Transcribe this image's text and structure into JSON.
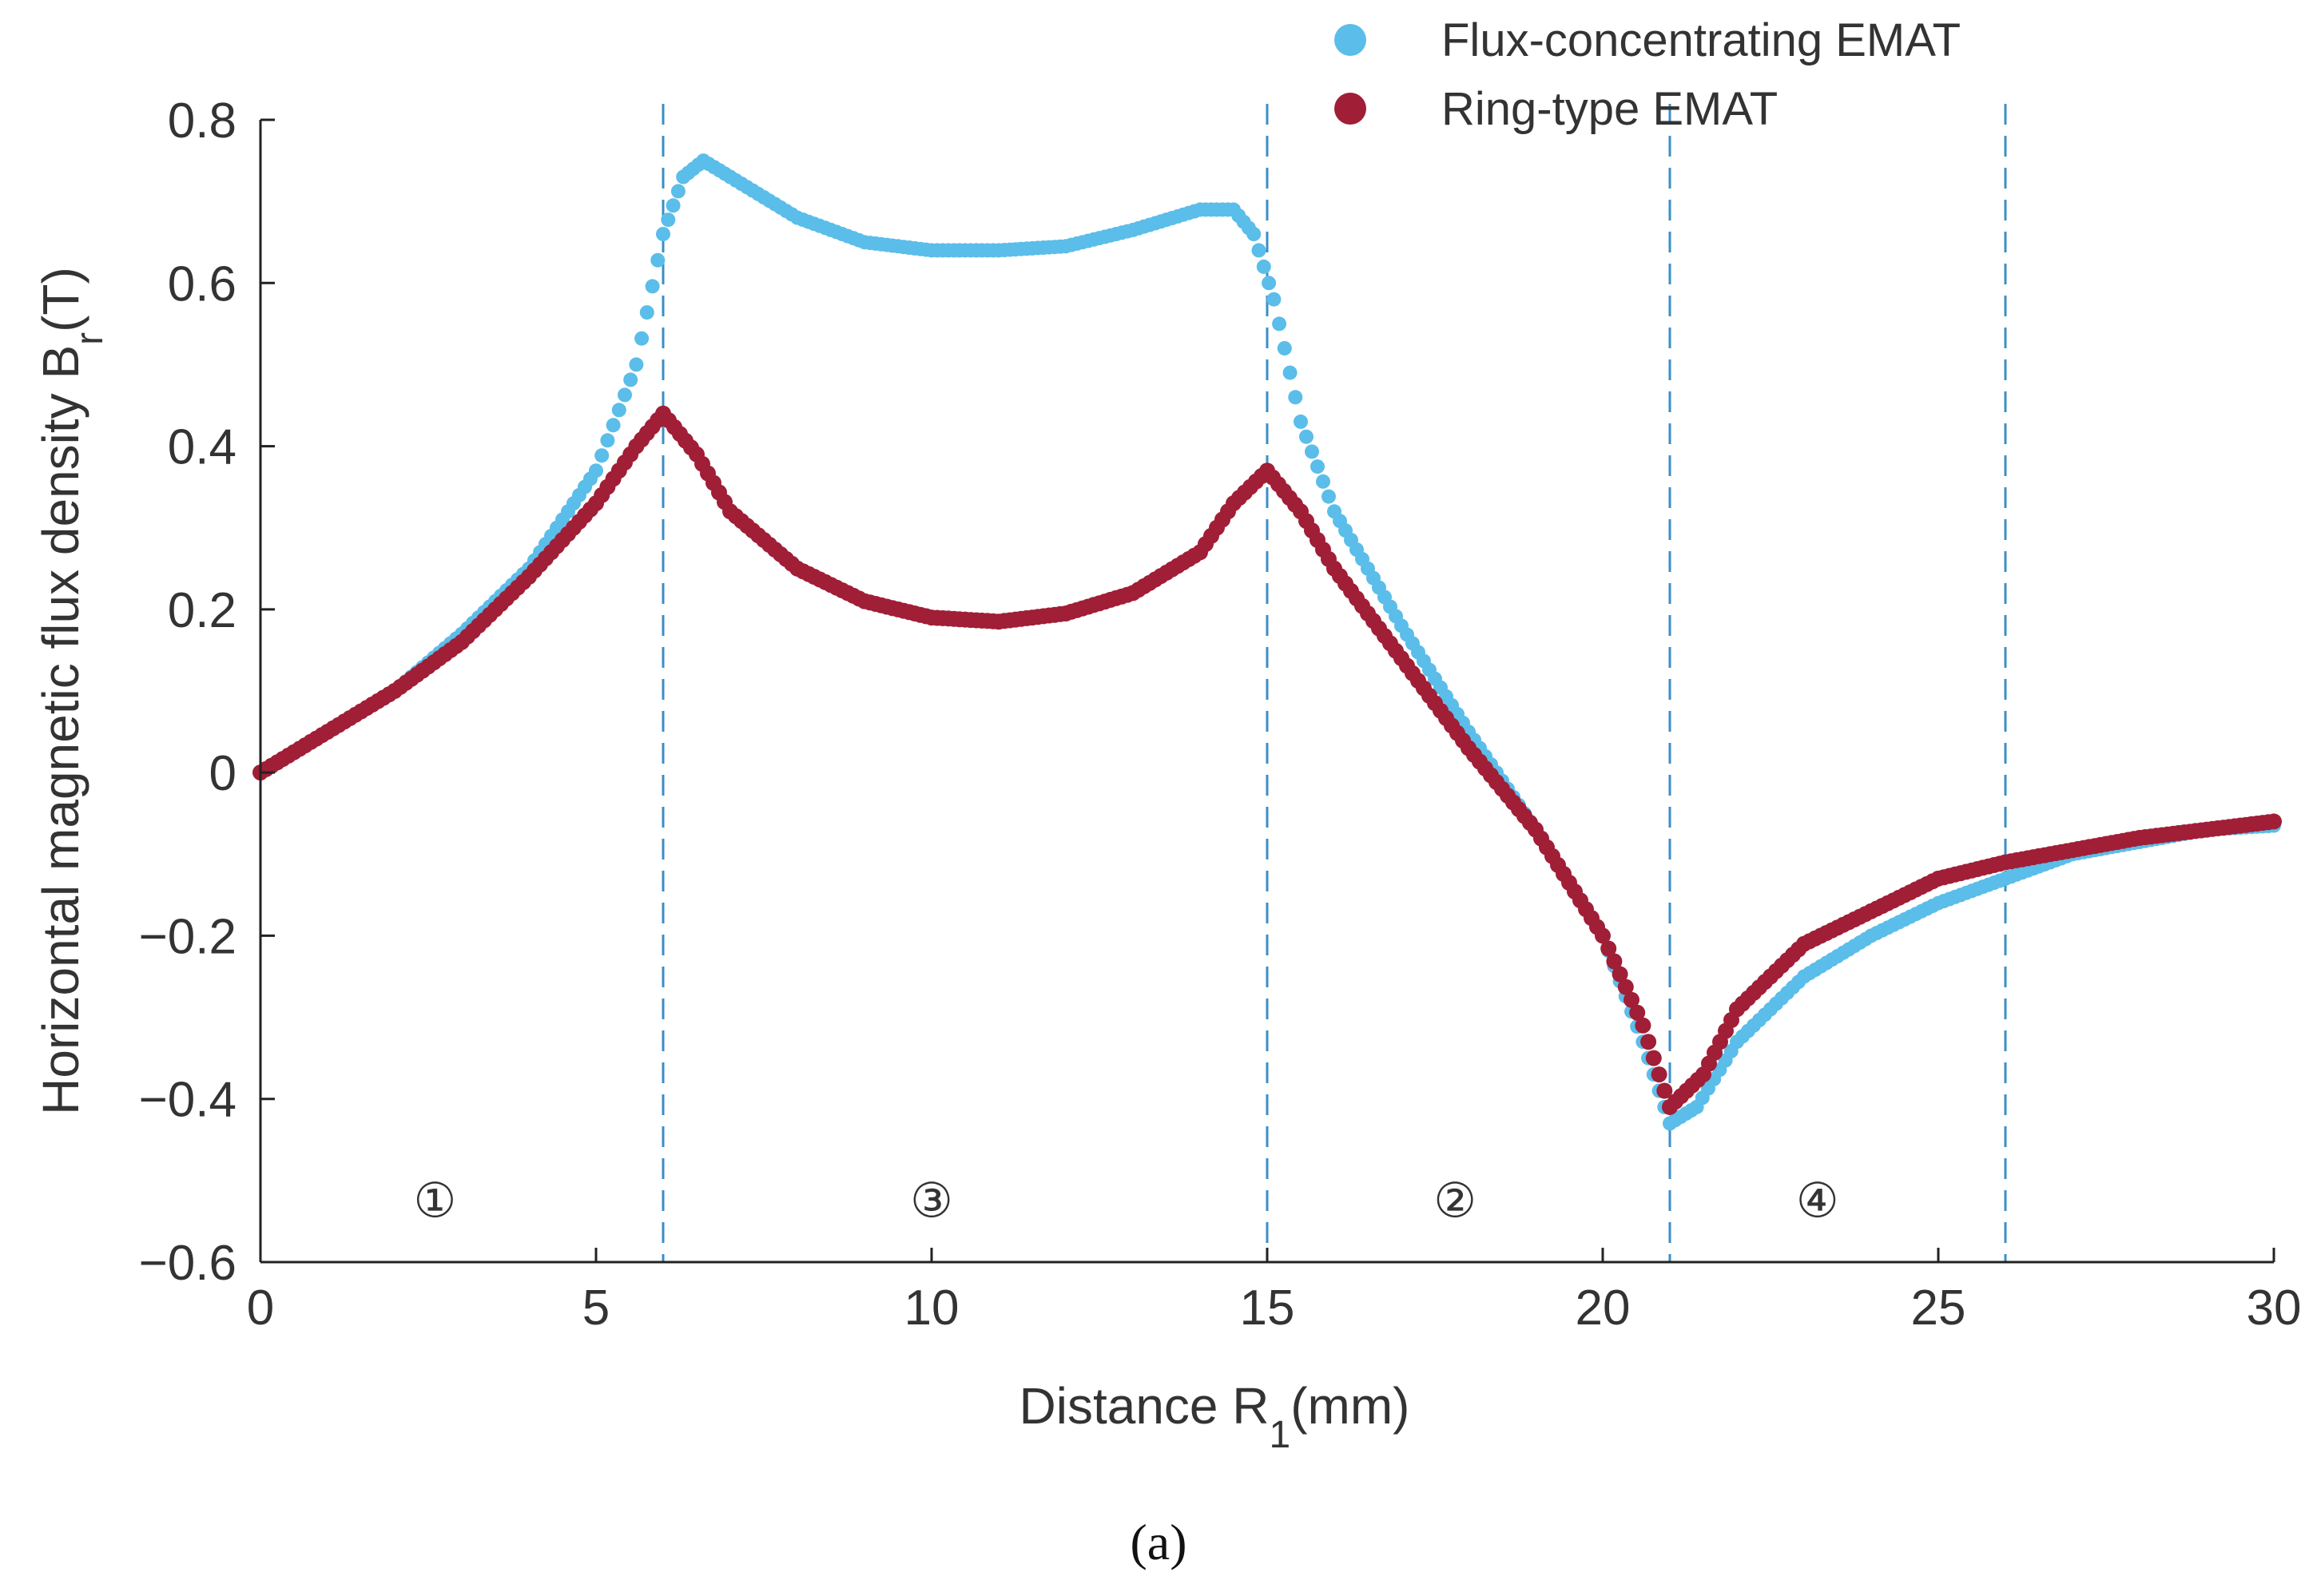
{
  "chart_data": {
    "type": "scatter",
    "xlabel": "Distance R",
    "xlabel_sub": "1",
    "xlabel_unit": "(mm)",
    "ylabel": "Horizontal magnetic flux density B",
    "ylabel_sub": "r",
    "ylabel_unit": "(T)",
    "xlim": [
      0,
      30
    ],
    "ylim": [
      -0.6,
      0.8
    ],
    "xticks": [
      0,
      5,
      10,
      15,
      20,
      25,
      30
    ],
    "xtick_labels": [
      "0",
      "5",
      "10",
      "15",
      "20",
      "25",
      "30"
    ],
    "yticks": [
      -0.6,
      -0.4,
      -0.2,
      0,
      0.2,
      0.4,
      0.6,
      0.8
    ],
    "ytick_labels": [
      "−0.6",
      "−0.4",
      "−0.2",
      "0",
      "0.2",
      "0.4",
      "0.6",
      "0.8"
    ],
    "grid": false,
    "legend_position": "top-right",
    "vlines": [
      6,
      15,
      21,
      26
    ],
    "region_labels": [
      {
        "text": "①",
        "x": 2.6,
        "y": -0.525
      },
      {
        "text": "③",
        "x": 10.0,
        "y": -0.525
      },
      {
        "text": "②",
        "x": 17.8,
        "y": -0.525
      },
      {
        "text": "④",
        "x": 23.2,
        "y": -0.525
      }
    ],
    "series": [
      {
        "name": "Flux-concentrating EMAT",
        "color": "#5BBDE9",
        "points": [
          [
            0,
            0.0
          ],
          [
            1,
            0.05
          ],
          [
            2,
            0.1
          ],
          [
            3,
            0.17
          ],
          [
            4,
            0.25
          ],
          [
            5,
            0.37
          ],
          [
            5.6,
            0.5
          ],
          [
            6.0,
            0.66
          ],
          [
            6.3,
            0.73
          ],
          [
            6.6,
            0.75
          ],
          [
            7,
            0.73
          ],
          [
            8,
            0.68
          ],
          [
            9,
            0.65
          ],
          [
            10,
            0.64
          ],
          [
            11,
            0.64
          ],
          [
            12,
            0.645
          ],
          [
            13,
            0.665
          ],
          [
            14,
            0.69
          ],
          [
            14.5,
            0.69
          ],
          [
            14.8,
            0.66
          ],
          [
            15.1,
            0.58
          ],
          [
            15.5,
            0.43
          ],
          [
            16,
            0.32
          ],
          [
            17,
            0.18
          ],
          [
            18,
            0.05
          ],
          [
            19,
            -0.07
          ],
          [
            20,
            -0.2
          ],
          [
            20.6,
            -0.33
          ],
          [
            21,
            -0.43
          ],
          [
            21.4,
            -0.41
          ],
          [
            22,
            -0.33
          ],
          [
            23,
            -0.25
          ],
          [
            24,
            -0.2
          ],
          [
            25,
            -0.16
          ],
          [
            26,
            -0.13
          ],
          [
            27,
            -0.1
          ],
          [
            28,
            -0.085
          ],
          [
            29,
            -0.07
          ],
          [
            30,
            -0.065
          ]
        ]
      },
      {
        "name": "Ring-type EMAT",
        "color": "#A01E36",
        "points": [
          [
            0,
            0.0
          ],
          [
            1,
            0.05
          ],
          [
            2,
            0.1
          ],
          [
            3,
            0.16
          ],
          [
            4,
            0.24
          ],
          [
            5,
            0.33
          ],
          [
            5.6,
            0.4
          ],
          [
            6.0,
            0.44
          ],
          [
            6.5,
            0.39
          ],
          [
            7,
            0.32
          ],
          [
            8,
            0.25
          ],
          [
            9,
            0.21
          ],
          [
            10,
            0.19
          ],
          [
            11,
            0.185
          ],
          [
            12,
            0.195
          ],
          [
            13,
            0.22
          ],
          [
            14,
            0.27
          ],
          [
            14.5,
            0.33
          ],
          [
            15,
            0.37
          ],
          [
            15.5,
            0.32
          ],
          [
            16,
            0.25
          ],
          [
            17,
            0.14
          ],
          [
            18,
            0.03
          ],
          [
            19,
            -0.07
          ],
          [
            20,
            -0.2
          ],
          [
            20.6,
            -0.31
          ],
          [
            21,
            -0.41
          ],
          [
            21.5,
            -0.37
          ],
          [
            22,
            -0.29
          ],
          [
            23,
            -0.21
          ],
          [
            24,
            -0.17
          ],
          [
            25,
            -0.13
          ],
          [
            26,
            -0.11
          ],
          [
            27,
            -0.095
          ],
          [
            28,
            -0.08
          ],
          [
            29,
            -0.07
          ],
          [
            30,
            -0.06
          ]
        ]
      }
    ],
    "caption": "(a)"
  }
}
